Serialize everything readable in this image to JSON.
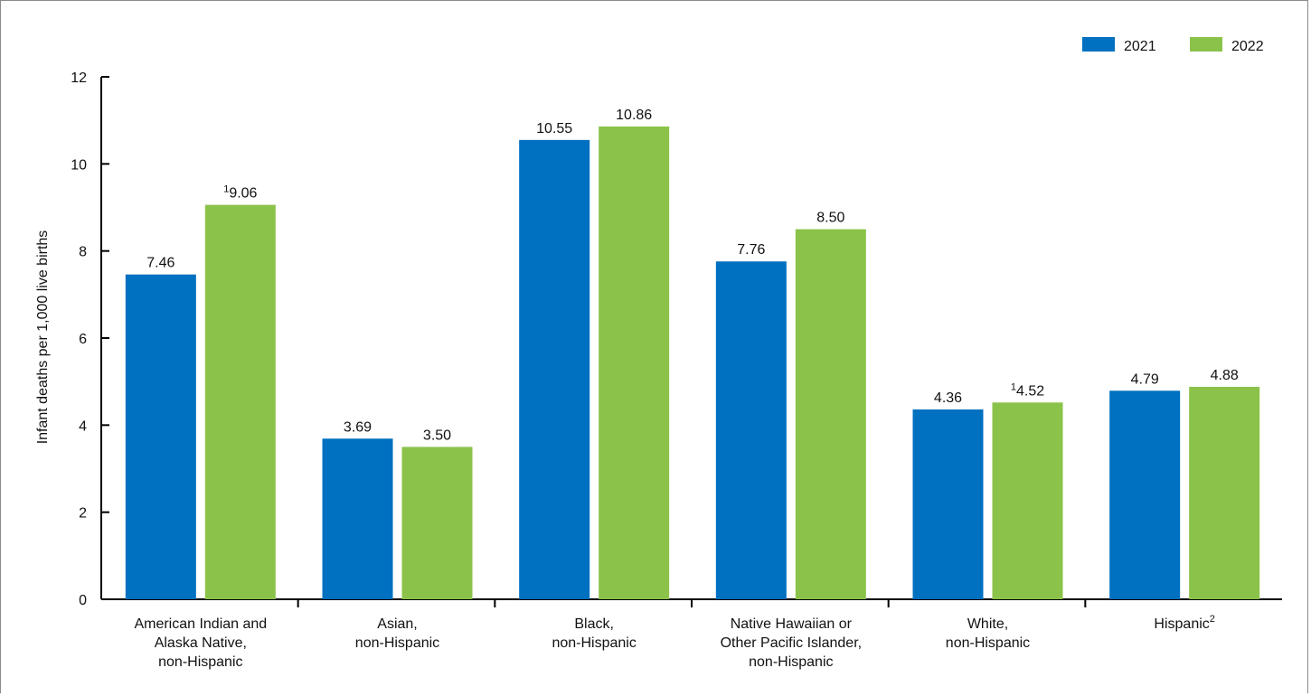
{
  "chart_data": {
    "type": "bar",
    "title": "",
    "xlabel": "",
    "ylabel": "Infant deaths per 1,000 live births",
    "ylim": [
      0,
      12
    ],
    "yticks": [
      "0",
      "2",
      "4",
      "6",
      "8",
      "10",
      "12"
    ],
    "grid": false,
    "legend_position": "top-right",
    "categories": [
      {
        "lines": [
          "American Indian and",
          "Alaska Native,",
          "non-Hispanic"
        ],
        "sup": ""
      },
      {
        "lines": [
          "Asian,",
          "non-Hispanic"
        ],
        "sup": ""
      },
      {
        "lines": [
          "Black,",
          "non-Hispanic"
        ],
        "sup": ""
      },
      {
        "lines": [
          "Native Hawaiian or",
          "Other Pacific Islander,",
          "non-Hispanic"
        ],
        "sup": ""
      },
      {
        "lines": [
          "White,",
          "non-Hispanic"
        ],
        "sup": ""
      },
      {
        "lines": [
          "Hispanic"
        ],
        "sup": "2"
      }
    ],
    "series": [
      {
        "name": "2021",
        "color": "#0070c0",
        "values": [
          7.46,
          3.69,
          10.55,
          7.76,
          4.36,
          4.79
        ],
        "labels": [
          "7.46",
          "3.69",
          "10.55",
          "7.76",
          "4.36",
          "4.79"
        ],
        "label_sups": [
          "",
          "",
          "",
          "",
          "",
          ""
        ]
      },
      {
        "name": "2022",
        "color": "#8bc34a",
        "values": [
          9.06,
          3.5,
          10.86,
          8.5,
          4.52,
          4.88
        ],
        "labels": [
          "9.06",
          "3.50",
          "10.86",
          "8.50",
          "4.52",
          "4.88"
        ],
        "label_sups": [
          "1",
          "",
          "",
          "",
          "1",
          ""
        ]
      }
    ]
  }
}
